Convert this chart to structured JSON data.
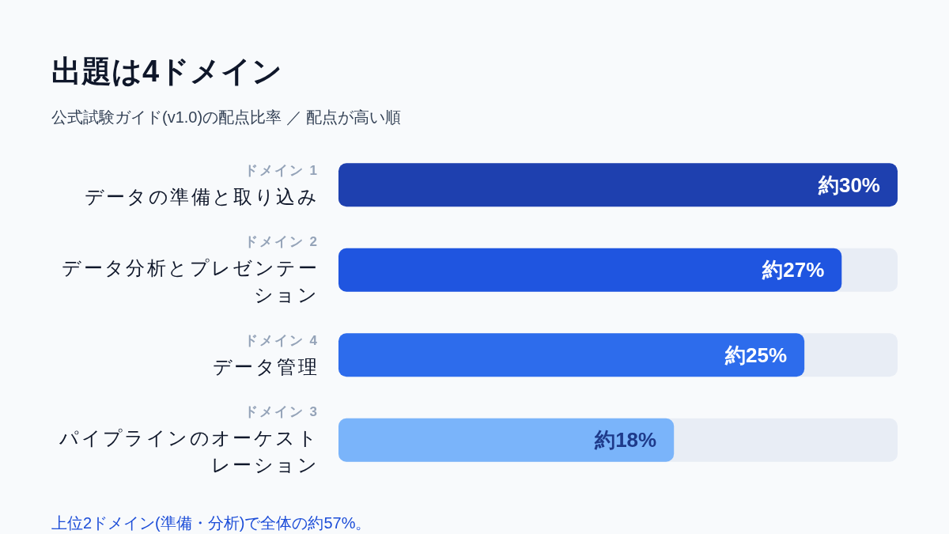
{
  "chart_data": {
    "type": "bar",
    "orientation": "horizontal",
    "title": "出題は4ドメイン",
    "subtitle": "公式試験ガイド(v1.0)の配点比率 ／ 配点が高い順",
    "categories": [
      "ドメイン 1\nデータの準備と取り込み",
      "ドメイン 2\nデータ分析とプレゼンテーション",
      "ドメイン 4\nデータ管理",
      "ドメイン 3\nパイプラインのオーケストレーション"
    ],
    "values": [
      30,
      27,
      25,
      18
    ],
    "colors": [
      "#1e40af",
      "#1f55e0",
      "#2d6cec",
      "#7ab4fa"
    ],
    "value_labels": [
      "約30%",
      "約27%",
      "約25%",
      "約18%"
    ],
    "xlim": [
      0,
      30
    ],
    "tick_labels": "y",
    "annotations": [
      "上位2ドメイン(準備・分析)で全体の約57%。"
    ]
  }
}
